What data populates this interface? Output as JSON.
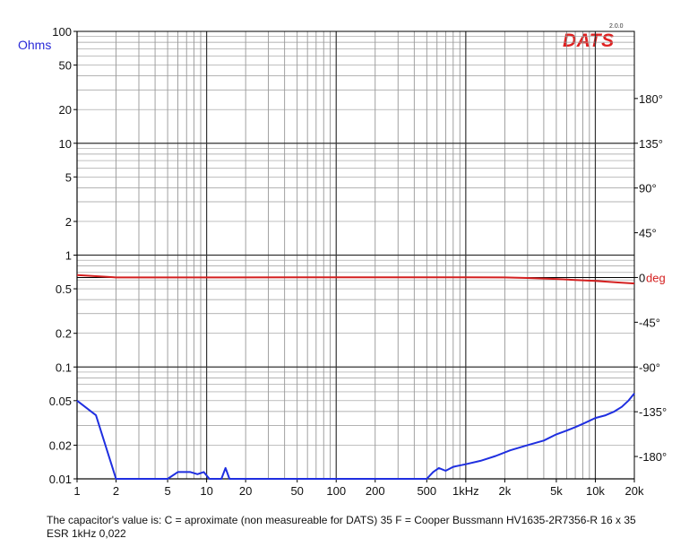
{
  "logo": {
    "text": "DATS",
    "version": "2.0.0"
  },
  "caption": "The capacitor's value is:   C = aproximate (non measureable for DATS) 35 F =  Cooper Bussmann HV1635-2R7356-R 16 x 35 ESR 1kHz 0,022",
  "chart_data": {
    "type": "line",
    "title": "",
    "y_unit_label": "Ohms",
    "x_scale": "log",
    "xlim": [
      1,
      20000
    ],
    "x_tick_values": [
      1,
      2,
      5,
      10,
      20,
      50,
      100,
      200,
      500,
      1000,
      2000,
      5000,
      10000,
      20000
    ],
    "x_tick_labels": [
      "1",
      "2",
      "5",
      "10",
      "20",
      "50",
      "100",
      "200",
      "500",
      "1kHz",
      "2k",
      "5k",
      "10k",
      "20k"
    ],
    "y_scale": "log",
    "ylim": [
      0.01,
      100
    ],
    "y_tick_values": [
      100,
      50,
      20,
      10,
      5,
      2,
      1,
      0.5,
      0.2,
      0.1,
      0.05,
      0.02,
      0.01
    ],
    "y_tick_labels": [
      "100",
      "50",
      "20",
      "10",
      "5",
      "2",
      "1",
      "0.5",
      "0.2",
      "0.1",
      "0.05",
      "0.02",
      "0.01"
    ],
    "y2_lim": [
      -202.5,
      247.5
    ],
    "y2_tick_values": [
      180,
      135,
      90,
      45,
      0,
      -45,
      -90,
      -135,
      -180
    ],
    "y2_tick_labels": [
      "180°",
      "135°",
      "90°",
      "45°",
      "0",
      "-45°",
      "-90°",
      "-135°",
      "-180°"
    ],
    "y2_unit_label": "deg",
    "grid": true,
    "series": [
      {
        "key": "impedance",
        "color": "#1f2fe0",
        "axis": "left",
        "points": [
          [
            1,
            0.05
          ],
          [
            1.4,
            0.037
          ],
          [
            2,
            0.01
          ],
          [
            3,
            0.01
          ],
          [
            5,
            0.01
          ],
          [
            6,
            0.0115
          ],
          [
            7.5,
            0.0115
          ],
          [
            8.5,
            0.011
          ],
          [
            9.5,
            0.0115
          ],
          [
            10.5,
            0.01
          ],
          [
            13,
            0.01
          ],
          [
            14,
            0.0125
          ],
          [
            15,
            0.01
          ],
          [
            20,
            0.01
          ],
          [
            100,
            0.01
          ],
          [
            400,
            0.01
          ],
          [
            500,
            0.01
          ],
          [
            560,
            0.0115
          ],
          [
            620,
            0.0125
          ],
          [
            700,
            0.0118
          ],
          [
            800,
            0.0128
          ],
          [
            1000,
            0.0135
          ],
          [
            1300,
            0.0145
          ],
          [
            1700,
            0.016
          ],
          [
            2200,
            0.018
          ],
          [
            3000,
            0.02
          ],
          [
            4000,
            0.022
          ],
          [
            5000,
            0.025
          ],
          [
            6000,
            0.027
          ],
          [
            7000,
            0.029
          ],
          [
            8000,
            0.031
          ],
          [
            10000,
            0.035
          ],
          [
            12000,
            0.037
          ],
          [
            14000,
            0.04
          ],
          [
            16000,
            0.044
          ],
          [
            18000,
            0.05
          ],
          [
            20000,
            0.058
          ]
        ]
      },
      {
        "key": "phase",
        "color": "#d42020",
        "axis": "right",
        "points": [
          [
            1,
            2.5
          ],
          [
            1.5,
            1
          ],
          [
            2,
            0
          ],
          [
            3,
            0
          ],
          [
            5,
            0
          ],
          [
            10,
            0
          ],
          [
            50,
            0.2
          ],
          [
            100,
            0.2
          ],
          [
            500,
            0.2
          ],
          [
            1000,
            0.2
          ],
          [
            2000,
            0
          ],
          [
            3000,
            -0.5
          ],
          [
            5000,
            -1.5
          ],
          [
            7000,
            -2.5
          ],
          [
            10000,
            -3.5
          ],
          [
            15000,
            -5
          ],
          [
            20000,
            -6
          ]
        ]
      }
    ]
  }
}
